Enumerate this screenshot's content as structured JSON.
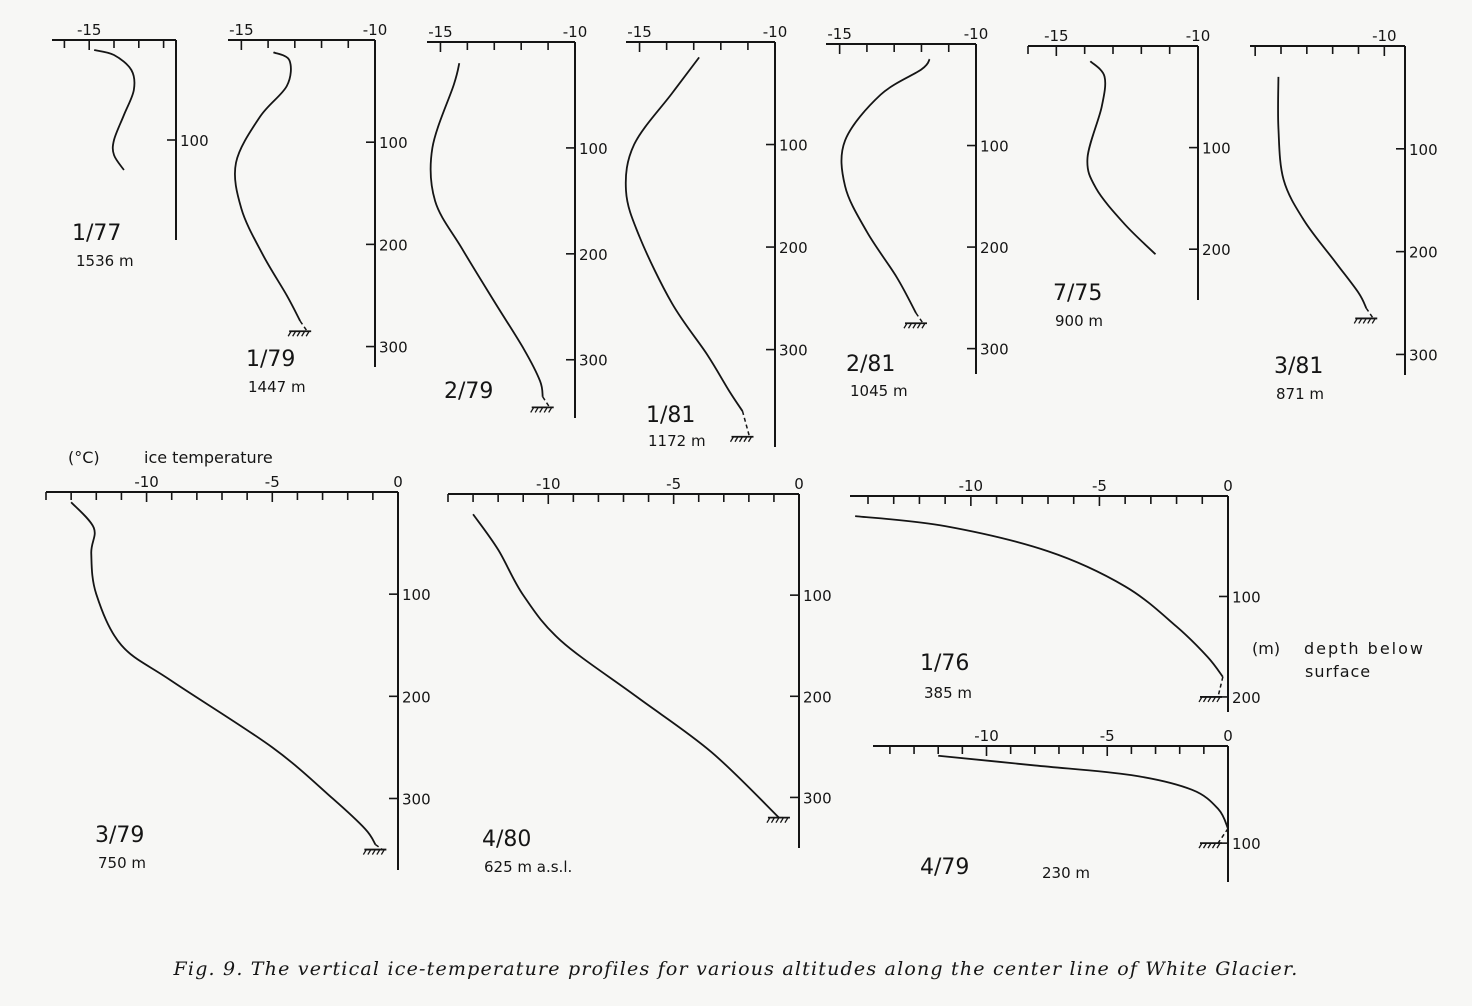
{
  "chart_data": [
    {
      "type": "line",
      "title": "1/77",
      "subtitle": "1536 m",
      "x_ticks": [
        -15
      ],
      "y_ticks": [
        100
      ],
      "xlim": [
        -16.5,
        -11.5
      ],
      "ylim": [
        0,
        200
      ],
      "x": [
        -14.8,
        -14.0,
        -13.3,
        -13.2,
        -13.6,
        -14.0,
        -14.0,
        -13.6
      ],
      "y": [
        10,
        15,
        30,
        50,
        75,
        100,
        115,
        130
      ]
    },
    {
      "type": "line",
      "title": "1/79",
      "subtitle": "1447 m",
      "x_ticks": [
        -15,
        -10
      ],
      "y_ticks": [
        100,
        200,
        300
      ],
      "xlim": [
        -15.5,
        -10
      ],
      "ylim": [
        0,
        320
      ],
      "bed_depth": 285,
      "x": [
        -13.8,
        -13.2,
        -13.3,
        -14.3,
        -15.2,
        -15.0,
        -14.2,
        -13.3,
        -12.8
      ],
      "y": [
        12,
        20,
        45,
        75,
        120,
        165,
        210,
        250,
        275
      ]
    },
    {
      "type": "line",
      "title": "2/79",
      "x_ticks": [
        -15,
        -10
      ],
      "y_ticks": [
        100,
        200,
        300
      ],
      "xlim": [
        -15.5,
        -10
      ],
      "ylim": [
        0,
        355
      ],
      "bed_depth": 345,
      "x": [
        -14.3,
        -14.5,
        -15.3,
        -15.2,
        -14.2,
        -13.0,
        -11.9,
        -11.3,
        -11.2
      ],
      "y": [
        20,
        40,
        100,
        150,
        195,
        245,
        290,
        320,
        335
      ]
    },
    {
      "type": "line",
      "title": "1/81",
      "subtitle": "1172 m",
      "x_ticks": [
        -15,
        -10
      ],
      "y_ticks": [
        100,
        200,
        300
      ],
      "xlim": [
        -15.5,
        -10
      ],
      "ylim": [
        0,
        395
      ],
      "bed_depth": 385,
      "x": [
        -12.8,
        -13.8,
        -15.2,
        -15.5,
        -15.0,
        -13.8,
        -12.5,
        -11.7,
        -11.2
      ],
      "y": [
        15,
        50,
        100,
        145,
        190,
        255,
        305,
        340,
        360
      ]
    },
    {
      "type": "line",
      "title": "2/81",
      "subtitle": "1045 m",
      "x_ticks": [
        -15,
        -10
      ],
      "y_ticks": [
        100,
        200,
        300
      ],
      "xlim": [
        -15.5,
        -10
      ],
      "ylim": [
        0,
        325
      ],
      "bed_depth": 275,
      "x": [
        -11.7,
        -12.0,
        -13.5,
        -14.8,
        -14.8,
        -14.0,
        -12.9,
        -12.2
      ],
      "y": [
        15,
        25,
        50,
        95,
        140,
        185,
        230,
        265
      ]
    },
    {
      "type": "line",
      "title": "7/75",
      "subtitle": "900 m",
      "x_ticks": [
        -15,
        -10
      ],
      "y_ticks": [
        100,
        200
      ],
      "xlim": [
        -16,
        -10
      ],
      "ylim": [
        0,
        250
      ],
      "x": [
        -13.8,
        -13.3,
        -13.4,
        -13.9,
        -13.6,
        -12.6,
        -11.5
      ],
      "y": [
        15,
        30,
        60,
        110,
        140,
        175,
        205
      ]
    },
    {
      "type": "line",
      "title": "3/81",
      "subtitle": "871 m",
      "x_ticks": [
        -10
      ],
      "y_ticks": [
        100,
        200,
        300
      ],
      "xlim": [
        -15.2,
        -9.2
      ],
      "ylim": [
        0,
        320
      ],
      "bed_depth": 265,
      "x": [
        -14.1,
        -14.1,
        -13.9,
        -13.1,
        -11.9,
        -11.0,
        -10.7
      ],
      "y": [
        30,
        80,
        130,
        170,
        210,
        240,
        255
      ]
    },
    {
      "type": "line",
      "title": "3/79",
      "subtitle": "750 m",
      "x_label": "ice temperature",
      "x_unit": "(°C)",
      "x_ticks": [
        -10,
        -5,
        0
      ],
      "y_ticks": [
        100,
        200,
        300
      ],
      "xlim": [
        -14,
        0
      ],
      "ylim": [
        0,
        370
      ],
      "bed_depth": 350,
      "x": [
        -13.0,
        -12.1,
        -12.2,
        -12.0,
        -11.0,
        -9.0,
        -5.0,
        -2.6,
        -1.3,
        -0.9
      ],
      "y": [
        10,
        35,
        60,
        100,
        150,
        185,
        250,
        300,
        330,
        345
      ]
    },
    {
      "type": "line",
      "title": "4/80",
      "subtitle": "625 m a.s.l.",
      "x_ticks": [
        -10,
        -5,
        0
      ],
      "y_ticks": [
        100,
        200,
        300
      ],
      "xlim": [
        -14,
        0
      ],
      "ylim": [
        0,
        350
      ],
      "bed_depth": 320,
      "x": [
        -13.0,
        -12.0,
        -11.0,
        -9.5,
        -6.5,
        -3.5,
        -0.8
      ],
      "y": [
        20,
        55,
        100,
        145,
        200,
        255,
        320
      ]
    },
    {
      "type": "line",
      "title": "1/76",
      "subtitle": "385 m",
      "y_label": "depth below surface",
      "y_unit": "(m)",
      "x_ticks": [
        -10,
        -5,
        0
      ],
      "y_ticks": [
        100,
        200
      ],
      "xlim": [
        -14.7,
        0
      ],
      "ylim": [
        0,
        215
      ],
      "bed_depth": 200,
      "x": [
        -14.5,
        -11.0,
        -7.0,
        -4.0,
        -2.0,
        -0.8,
        -0.2
      ],
      "y": [
        20,
        30,
        55,
        90,
        130,
        160,
        180
      ]
    },
    {
      "type": "line",
      "title": "4/79",
      "subtitle": "230 m",
      "x_ticks": [
        -10,
        -5,
        0
      ],
      "y_ticks": [
        100
      ],
      "xlim": [
        -14.7,
        0
      ],
      "ylim": [
        0,
        140
      ],
      "bed_depth": 100,
      "x": [
        -12.0,
        -8.0,
        -4.0,
        -1.5,
        -0.4,
        0
      ],
      "y": [
        10,
        20,
        30,
        45,
        65,
        85
      ]
    }
  ],
  "caption": "Fig. 9. The vertical ice-temperature profiles for various altitudes along the center line of White Glacier."
}
